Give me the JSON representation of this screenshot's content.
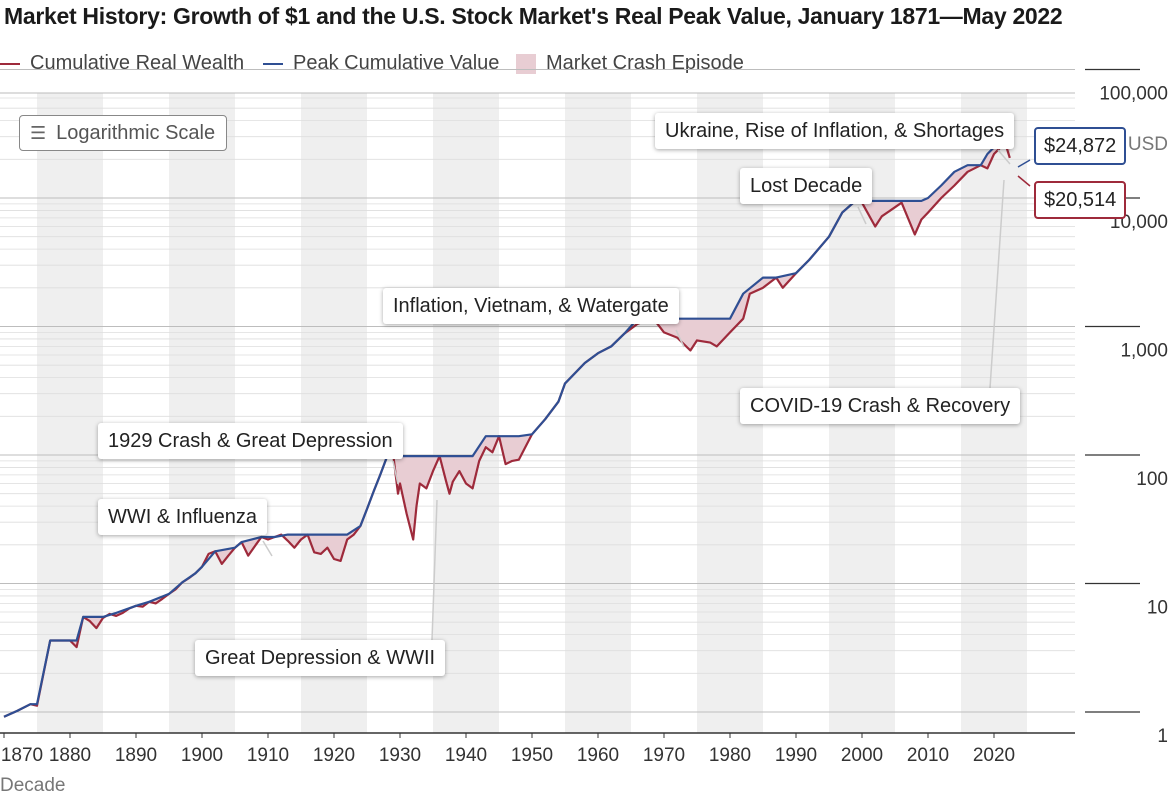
{
  "chart_data": {
    "type": "line",
    "title": "Market History: Growth of $1 and the U.S. Stock Market's Real Peak Value, January 1871—May 2022",
    "scale_note": "Logarithmic Scale",
    "xlabel": "Decade",
    "y_unit": "USD",
    "y_scale": "log",
    "ylim": [
      0.8,
      100000
    ],
    "xlim": [
      1870,
      2026
    ],
    "x_ticks": [
      "1870",
      "1880",
      "1890",
      "1900",
      "1910",
      "1920",
      "1930",
      "1940",
      "1950",
      "1960",
      "1970",
      "1980",
      "1990",
      "2000",
      "2010",
      "2020"
    ],
    "y_ticks": [
      {
        "value": 1,
        "label": "1"
      },
      {
        "value": 10,
        "label": "10"
      },
      {
        "value": 100,
        "label": "100"
      },
      {
        "value": 1000,
        "label": "1,000"
      },
      {
        "value": 10000,
        "label": "10,000"
      },
      {
        "value": 100000,
        "label": "100,000"
      }
    ],
    "legend_position": "top-left",
    "grid": true,
    "colors": {
      "wealth": "#9e2a3b",
      "peak": "#2f4f93",
      "crash_fill": "#e8cdd3",
      "band": "#efefef"
    },
    "series": [
      {
        "name": "Cumulative Real Wealth",
        "color": "#9e2a3b",
        "x": [
          1870,
          1872,
          1874,
          1875,
          1877,
          1880,
          1881,
          1882,
          1883,
          1884,
          1885,
          1886,
          1887,
          1888,
          1889,
          1890,
          1891,
          1892,
          1893,
          1894,
          1895,
          1896,
          1897,
          1898,
          1899,
          1900,
          1901,
          1902,
          1903,
          1904,
          1905,
          1906,
          1907,
          1908,
          1909,
          1910,
          1911,
          1912,
          1913,
          1914,
          1915,
          1916,
          1917,
          1918,
          1919,
          1920,
          1921,
          1922,
          1923,
          1924,
          1925,
          1926,
          1927,
          1928,
          1929,
          1929.7,
          1930,
          1931,
          1932,
          1932.5,
          1933,
          1934,
          1935,
          1936,
          1937,
          1937.5,
          1938,
          1939,
          1940,
          1941,
          1942,
          1943,
          1944,
          1945,
          1946,
          1947,
          1948,
          1950,
          1952,
          1954,
          1955,
          1958,
          1960,
          1962,
          1964,
          1966,
          1968,
          1969,
          1970,
          1972,
          1974,
          1975,
          1977,
          1978,
          1980,
          1982,
          1983,
          1985,
          1987,
          1988,
          1990,
          1992,
          1995,
          1997,
          1999,
          2000,
          2002,
          2003,
          2006,
          2008,
          2009,
          2010,
          2012,
          2014,
          2016,
          2018,
          2019,
          2020,
          2021,
          2021.9,
          2022.4
        ],
        "values": [
          0.92,
          1.02,
          1.15,
          1.12,
          3.6,
          3.6,
          3.2,
          5.5,
          5.1,
          4.5,
          5.4,
          5.8,
          5.6,
          5.9,
          6.4,
          6.7,
          6.6,
          7.2,
          7.0,
          7.6,
          8.3,
          9.0,
          10.2,
          11.0,
          12.0,
          13.5,
          17.0,
          17.8,
          14.2,
          16.5,
          19.0,
          21.0,
          16.5,
          19.5,
          23.0,
          22.0,
          23.0,
          24.0,
          21.5,
          19.0,
          22.0,
          24.0,
          17.5,
          17.0,
          19.0,
          15.5,
          15.0,
          22.0,
          24.0,
          28.0,
          38.0,
          52.0,
          70.0,
          96.0,
          98.0,
          50.0,
          60.0,
          35.0,
          22.0,
          40.0,
          60.0,
          55.0,
          75.0,
          98.0,
          62.0,
          50.0,
          62.0,
          75.0,
          60.0,
          55.0,
          90.0,
          115.0,
          105.0,
          140.0,
          85.0,
          90.0,
          92.0,
          145.0,
          190.0,
          260.0,
          360.0,
          520.0,
          620.0,
          700.0,
          880.0,
          1050.0,
          1150.0,
          1050.0,
          900.0,
          820.0,
          650.0,
          780.0,
          750.0,
          700.0,
          900.0,
          1150.0,
          1800.0,
          2000.0,
          2400.0,
          2000.0,
          2600.0,
          3300.0,
          5000.0,
          7700.0,
          9500.0,
          9200.0,
          6000.0,
          7200.0,
          9200.0,
          5200.0,
          6800.0,
          7700.0,
          10000.0,
          12500.0,
          16000.0,
          18000.0,
          17000.0,
          22000.0,
          24800.0,
          24872.0,
          20514.0
        ]
      },
      {
        "name": "Peak Cumulative Value",
        "color": "#2f4f93",
        "x": [
          1870,
          1872,
          1874,
          1875,
          1877,
          1881,
          1882,
          1885,
          1887,
          1890,
          1892,
          1895,
          1897,
          1899,
          1900,
          1902,
          1905,
          1906,
          1909,
          1911,
          1913,
          1922,
          1924,
          1925,
          1926,
          1927,
          1928,
          1928.9,
          1936.5,
          1940,
          1941,
          1943,
          1946,
          1947,
          1948,
          1950,
          1952,
          1954,
          1955,
          1958,
          1960,
          1962,
          1964,
          1966,
          1978,
          1980,
          1982,
          1985,
          1987,
          1990,
          1992,
          1995,
          1997,
          1999,
          2009,
          2010,
          2012,
          2014,
          2016,
          2018,
          2019,
          2020,
          2021.9,
          2022.4
        ],
        "values": [
          0.92,
          1.02,
          1.15,
          1.15,
          3.6,
          3.6,
          5.5,
          5.5,
          5.9,
          6.7,
          7.2,
          8.3,
          10.2,
          12.0,
          13.5,
          17.8,
          19.0,
          21.0,
          23.0,
          23.0,
          24.0,
          24.0,
          28.0,
          38.0,
          52.0,
          70.0,
          96.0,
          98.0,
          98.0,
          98.0,
          98.0,
          140.0,
          140.0,
          140.0,
          140.0,
          145.0,
          190.0,
          260.0,
          360.0,
          520.0,
          620.0,
          700.0,
          880.0,
          1150.0,
          1150.0,
          1150.0,
          1800.0,
          2400.0,
          2400.0,
          2600.0,
          3300.0,
          5000.0,
          7700.0,
          9500.0,
          9500.0,
          10000.0,
          12500.0,
          16000.0,
          18000.0,
          18000.0,
          22000.0,
          24800.0,
          24872.0,
          24872.0
        ]
      }
    ],
    "annotations": [
      {
        "text": "WWI & Influenza"
      },
      {
        "text": "1929 Crash & Great Depression"
      },
      {
        "text": "Great Depression & WWII"
      },
      {
        "text": "Inflation, Vietnam, & Watergate"
      },
      {
        "text": "Lost Decade"
      },
      {
        "text": "Ukraine, Rise of Inflation, & Shortages"
      },
      {
        "text": "COVID-19 Crash & Recovery"
      }
    ],
    "value_labels": {
      "peak": "$24,872",
      "current": "$20,514"
    },
    "legend": [
      "Cumulative Real Wealth",
      "Peak Cumulative Value",
      "Market Crash Episode"
    ]
  }
}
